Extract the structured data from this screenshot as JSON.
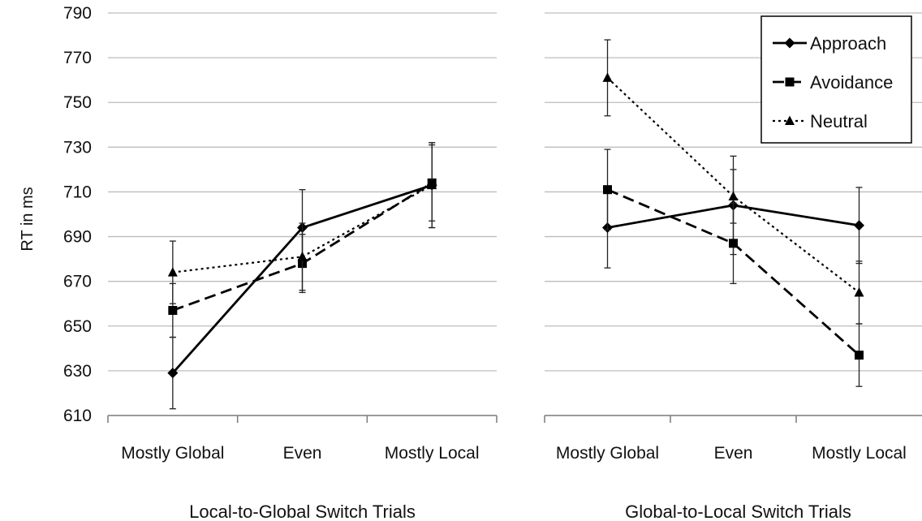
{
  "chart_data": {
    "type": "line",
    "ylabel": "RT in ms",
    "ylim": [
      610,
      790
    ],
    "yticks": [
      610,
      630,
      650,
      670,
      690,
      710,
      730,
      750,
      770,
      790
    ],
    "grid": true,
    "legend": {
      "placement": "top-right",
      "entries": [
        "Approach",
        "Avoidance",
        "Neutral"
      ]
    },
    "series_styles": [
      {
        "name": "Approach",
        "marker": "diamond",
        "dash": "solid",
        "color": "#000000"
      },
      {
        "name": "Avoidance",
        "marker": "square",
        "dash": "dashed",
        "color": "#000000"
      },
      {
        "name": "Neutral",
        "marker": "triangle",
        "dash": "dotted",
        "color": "#000000"
      }
    ],
    "panels": [
      {
        "xlabel": "Local-to-Global Switch Trials",
        "categories": [
          "Mostly Global",
          "Even",
          "Mostly Local"
        ],
        "series": [
          {
            "name": "Approach",
            "values": [
              629,
              694,
              713
            ],
            "errors": [
              16,
              17,
              19
            ]
          },
          {
            "name": "Avoidance",
            "values": [
              657,
              678,
              714
            ],
            "errors": [
              12,
              13,
              17
            ]
          },
          {
            "name": "Neutral",
            "values": [
              674,
              681,
              713
            ],
            "errors": [
              14,
              15,
              19
            ]
          }
        ]
      },
      {
        "xlabel": "Global-to-Local Switch Trials",
        "categories": [
          "Mostly Global",
          "Even",
          "Mostly Local"
        ],
        "series": [
          {
            "name": "Approach",
            "values": [
              694,
              704,
              695
            ],
            "errors": [
              18,
              22,
              17
            ]
          },
          {
            "name": "Avoidance",
            "values": [
              711,
              687,
              637
            ],
            "errors": [
              18,
              18,
              14
            ]
          },
          {
            "name": "Neutral",
            "values": [
              761,
              708,
              665
            ],
            "errors": [
              17,
              12,
              14
            ]
          }
        ]
      }
    ]
  }
}
